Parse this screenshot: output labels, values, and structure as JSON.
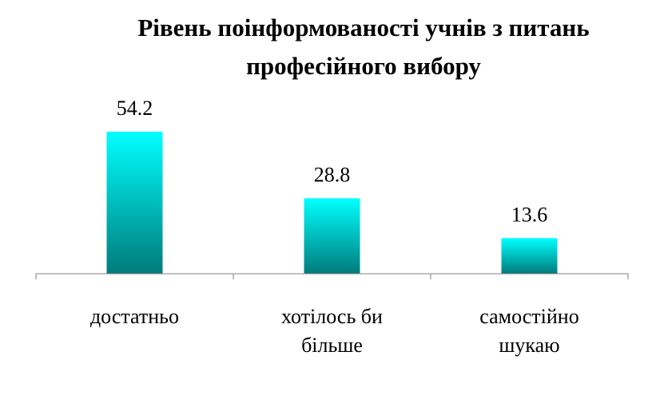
{
  "chart_data": {
    "type": "bar",
    "title_lines": [
      "Рівень поінформованості учнів з питань",
      "професійного вибору"
    ],
    "categories": [
      [
        "достатньо"
      ],
      [
        "хотілось би",
        "більше"
      ],
      [
        "самостійно",
        "шукаю"
      ]
    ],
    "values": [
      54.2,
      28.8,
      13.6
    ],
    "data_labels": [
      "54.2",
      "28.8",
      "13.6"
    ],
    "xlabel": "",
    "ylabel": "",
    "ylim": [
      0,
      70
    ],
    "grid": false,
    "legend": "none",
    "colors": {
      "bar_top": "#00ffff",
      "bar_bottom": "#007b7b",
      "axis": "#808080"
    }
  }
}
